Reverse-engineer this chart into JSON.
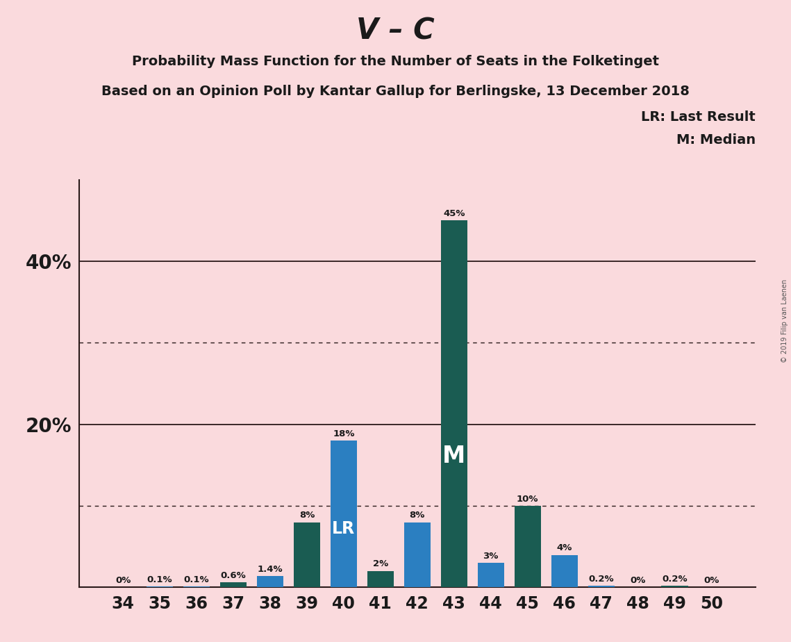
{
  "title": "V – C",
  "subtitle1": "Probability Mass Function for the Number of Seats in the Folketinget",
  "subtitle2": "Based on an Opinion Poll by Kantar Gallup for Berlingske, 13 December 2018",
  "copyright": "© 2019 Filip van Laenen",
  "seats": [
    34,
    35,
    36,
    37,
    38,
    39,
    40,
    41,
    42,
    43,
    44,
    45,
    46,
    47,
    48,
    49,
    50
  ],
  "values": [
    0.0,
    0.1,
    0.1,
    0.6,
    1.4,
    8.0,
    18.0,
    2.0,
    8.0,
    45.0,
    3.0,
    10.0,
    4.0,
    0.2,
    0.0,
    0.2,
    0.0
  ],
  "labels": [
    "0%",
    "0.1%",
    "0.1%",
    "0.6%",
    "1.4%",
    "8%",
    "18%",
    "2%",
    "8%",
    "45%",
    "3%",
    "10%",
    "4%",
    "0.2%",
    "0%",
    "0.2%",
    "0%"
  ],
  "teal_seats": [
    37,
    39,
    41,
    43,
    45,
    49
  ],
  "lr_seat": 40,
  "median_seat": 43,
  "background_color": "#fadadd",
  "bar_color_blue": "#2b7fc1",
  "bar_color_teal": "#1a5c52",
  "ylim_max": 50,
  "solid_hlines": [
    20,
    40
  ],
  "dotted_hlines": [
    10,
    30
  ],
  "legend_text1": "LR: Last Result",
  "legend_text2": "M: Median",
  "ytick_positions": [
    20,
    40
  ],
  "ytick_labels": [
    "20%",
    "40%"
  ]
}
